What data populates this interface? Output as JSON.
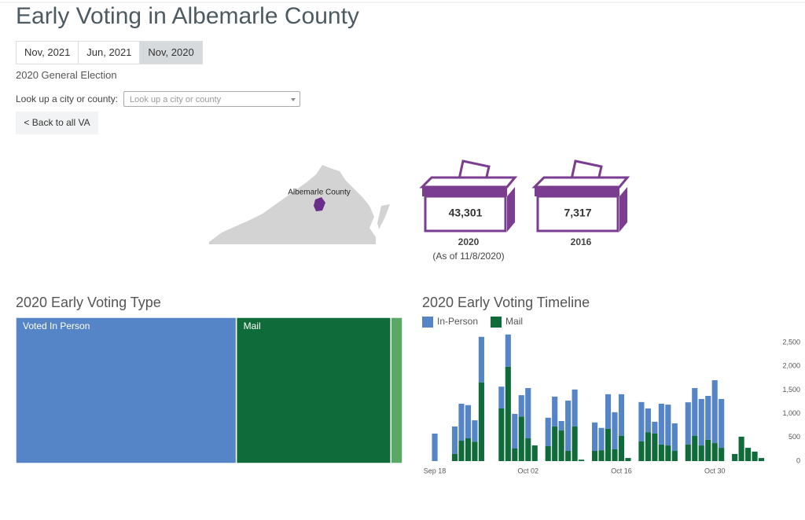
{
  "header": {
    "title": "Early Voting in Albemarle County"
  },
  "tabs": [
    "Nov, 2021",
    "Jun, 2021",
    "Nov, 2020"
  ],
  "active_tab": 2,
  "election": "2020 General Election",
  "lookup": {
    "label": "Look up a city or county:",
    "placeholder": "Look up a city or county"
  },
  "back_button": "< Back to all VA",
  "map": {
    "label": "Albemarle County"
  },
  "ballot_boxes": [
    {
      "count": "43,301",
      "year": "2020",
      "note": "(As of 11/8/2020)"
    },
    {
      "count": "7,317",
      "year": "2016"
    }
  ],
  "chart_data": [
    {
      "type": "treemap",
      "title": "2020 Early Voting Type",
      "categories": [
        "Voted In Person",
        "Mail",
        null
      ],
      "values": [
        24700,
        17300,
        1300
      ],
      "colors": [
        "#5585c6",
        "#106b3a",
        "#5aa865"
      ]
    },
    {
      "type": "bar",
      "stacked": true,
      "title": "2020 Early Voting Timeline",
      "categories": [
        "Sep 18",
        null,
        null,
        null,
        null,
        null,
        null,
        null,
        null,
        null,
        null,
        null,
        null,
        null,
        "Oct 02",
        null,
        null,
        null,
        null,
        null,
        null,
        null,
        null,
        null,
        null,
        null,
        null,
        null,
        "Oct 16",
        null,
        null,
        null,
        null,
        null,
        null,
        null,
        null,
        null,
        null,
        null,
        null,
        null,
        "Oct 30",
        null,
        null,
        null,
        null,
        null,
        null,
        null
      ],
      "series": [
        {
          "name": "In-Person",
          "color": "#5585c6",
          "values": [
            580,
            0,
            0,
            580,
            780,
            700,
            450,
            960,
            0,
            0,
            460,
            680,
            730,
            450,
            1060,
            0,
            0,
            600,
            630,
            200,
            1060,
            780,
            0,
            0,
            600,
            470,
            730,
            780,
            880,
            0,
            0,
            830,
            500,
            250,
            860,
            860,
            580,
            0,
            890,
            1010,
            980,
            925,
            1325,
            1030,
            0,
            0,
            0,
            0,
            0,
            0
          ]
        },
        {
          "name": "Mail",
          "color": "#106b3a",
          "values": [
            0,
            0,
            0,
            150,
            430,
            480,
            410,
            1660,
            0,
            0,
            1110,
            1990,
            265,
            940,
            480,
            330,
            0,
            315,
            730,
            645,
            215,
            730,
            30,
            0,
            215,
            230,
            680,
            250,
            530,
            65,
            0,
            415,
            610,
            580,
            350,
            330,
            215,
            0,
            350,
            530,
            330,
            450,
            380,
            280,
            0,
            150,
            515,
            280,
            200,
            65
          ]
        }
      ],
      "ylim": [
        0,
        2700
      ],
      "yticks": [
        0,
        500,
        {
          "value": 1000,
          "label": "1,000"
        },
        {
          "value": 1500,
          "label": "1,500"
        },
        {
          "value": 2000,
          "label": "2,000"
        },
        {
          "value": 2500,
          "label": "2,500"
        }
      ],
      "y_axis_side": "right",
      "grid": false,
      "legend": "top-left"
    }
  ]
}
